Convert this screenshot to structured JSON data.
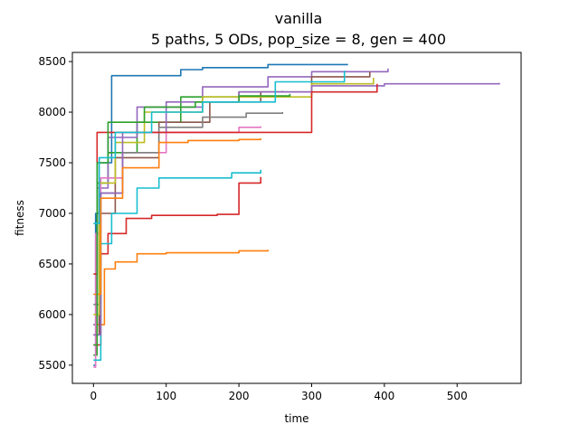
{
  "chart_data": {
    "type": "line",
    "title": "vanilla",
    "subtitle": "5 paths, 5 ODs, pop_size = 8, gen = 400",
    "xlabel": "time",
    "ylabel": "fitness",
    "xlim": [
      -29,
      588
    ],
    "ylim": [
      5320,
      8590
    ],
    "xticks": [
      0,
      100,
      200,
      300,
      400,
      500
    ],
    "yticks": [
      5500,
      6000,
      6500,
      7000,
      7500,
      8000,
      8500
    ],
    "grid": false,
    "legend": "none",
    "series": [
      {
        "color": "#1f77b4",
        "x": [
          0,
          3,
          8,
          25,
          120,
          150,
          240,
          350
        ],
        "y": [
          5500,
          7000,
          7500,
          8360,
          8420,
          8440,
          8470,
          8470
        ]
      },
      {
        "color": "#ff7f0e",
        "x": [
          0,
          15,
          30,
          60,
          100,
          200,
          240
        ],
        "y": [
          5900,
          6450,
          6520,
          6600,
          6610,
          6630,
          6640
        ]
      },
      {
        "color": "#2ca02c",
        "x": [
          0,
          5,
          20,
          60,
          120,
          200,
          260
        ],
        "y": [
          5600,
          7300,
          7600,
          7900,
          8150,
          8200,
          8210
        ]
      },
      {
        "color": "#d62728",
        "x": [
          0,
          10,
          20,
          45,
          80,
          170,
          200,
          230
        ],
        "y": [
          5700,
          6600,
          6800,
          6950,
          6980,
          6990,
          7300,
          7360
        ]
      },
      {
        "color": "#9467bd",
        "x": [
          0,
          5,
          20,
          60,
          150,
          240,
          300,
          405
        ],
        "y": [
          5900,
          7250,
          7750,
          8050,
          8250,
          8350,
          8400,
          8430
        ]
      },
      {
        "color": "#8c564b",
        "x": [
          0,
          8,
          30,
          90,
          160,
          230,
          300,
          380
        ],
        "y": [
          5800,
          7000,
          7550,
          7900,
          8100,
          8200,
          8350,
          8400
        ]
      },
      {
        "color": "#e377c2",
        "x": [
          0,
          3,
          10,
          40,
          100,
          200,
          230
        ],
        "y": [
          5480,
          6800,
          7350,
          7600,
          7800,
          7850,
          7860
        ]
      },
      {
        "color": "#7f7f7f",
        "x": [
          0,
          10,
          40,
          90,
          150,
          210,
          260
        ],
        "y": [
          6100,
          7200,
          7600,
          7850,
          7950,
          7990,
          8000
        ]
      },
      {
        "color": "#bcbd22",
        "x": [
          0,
          8,
          30,
          70,
          150,
          300,
          385
        ],
        "y": [
          6000,
          7300,
          7700,
          8000,
          8150,
          8280,
          8340
        ]
      },
      {
        "color": "#17becf",
        "x": [
          0,
          10,
          25,
          60,
          90,
          190,
          230
        ],
        "y": [
          5550,
          6700,
          7000,
          7250,
          7350,
          7400,
          7430
        ]
      },
      {
        "color": "#9467bd",
        "x": [
          0,
          10,
          40,
          100,
          200,
          300,
          400,
          558
        ],
        "y": [
          5800,
          7200,
          7800,
          8100,
          8200,
          8260,
          8280,
          8290
        ]
      },
      {
        "color": "#d62728",
        "x": [
          0,
          5,
          20,
          100,
          280,
          300,
          390
        ],
        "y": [
          6400,
          7800,
          7800,
          7800,
          7800,
          8200,
          8280
        ]
      },
      {
        "color": "#ff7f0e",
        "x": [
          0,
          10,
          40,
          90,
          130,
          200,
          230
        ],
        "y": [
          6200,
          7150,
          7450,
          7700,
          7720,
          7730,
          7740
        ]
      },
      {
        "color": "#2ca02c",
        "x": [
          0,
          5,
          20,
          70,
          140,
          200,
          270
        ],
        "y": [
          5700,
          7500,
          7900,
          8050,
          8100,
          8160,
          8180
        ]
      },
      {
        "color": "#17becf",
        "x": [
          0,
          8,
          30,
          80,
          150,
          250,
          345
        ],
        "y": [
          6900,
          7550,
          7800,
          8000,
          8100,
          8300,
          8410
        ]
      }
    ]
  }
}
